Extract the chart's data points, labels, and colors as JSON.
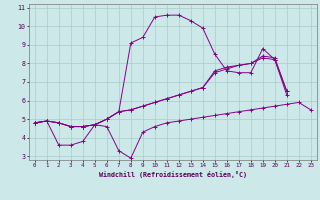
{
  "xlabel": "Windchill (Refroidissement éolien,°C)",
  "bg_color": "#cce8e8",
  "grid_color": "#aacccc",
  "line_color": "#880088",
  "xlim": [
    -0.5,
    23.5
  ],
  "ylim": [
    2.8,
    11.2
  ],
  "xticks": [
    0,
    1,
    2,
    3,
    4,
    5,
    6,
    7,
    8,
    9,
    10,
    11,
    12,
    13,
    14,
    15,
    16,
    17,
    18,
    19,
    20,
    21,
    22,
    23
  ],
  "yticks": [
    3,
    4,
    5,
    6,
    7,
    8,
    9,
    10,
    11
  ],
  "series1_x": [
    0,
    1,
    2,
    3,
    4,
    5,
    6,
    7,
    8,
    9,
    10,
    11,
    12,
    13,
    14,
    15,
    16,
    17,
    18,
    19,
    20,
    21,
    22,
    23
  ],
  "series1_y": [
    4.8,
    4.9,
    3.6,
    3.6,
    3.8,
    4.7,
    4.6,
    3.3,
    2.9,
    4.3,
    4.6,
    4.8,
    4.9,
    5.0,
    5.1,
    5.2,
    5.3,
    5.4,
    5.5,
    5.6,
    5.7,
    5.8,
    5.9,
    5.5
  ],
  "series2_x": [
    0,
    1,
    2,
    3,
    4,
    5,
    6,
    7,
    8,
    9,
    10,
    11,
    12,
    13,
    14,
    15,
    16,
    17,
    18,
    19,
    20,
    21
  ],
  "series2_y": [
    4.8,
    4.9,
    4.8,
    4.6,
    4.6,
    4.7,
    5.0,
    5.4,
    9.1,
    9.4,
    10.5,
    10.6,
    10.6,
    10.3,
    9.9,
    8.5,
    7.6,
    7.5,
    7.5,
    8.8,
    8.2,
    6.5
  ],
  "series3_x": [
    0,
    1,
    2,
    3,
    4,
    5,
    6,
    7,
    8,
    9,
    10,
    11,
    12,
    13,
    14,
    15,
    16,
    17,
    18,
    19,
    20,
    21
  ],
  "series3_y": [
    4.8,
    4.9,
    4.8,
    4.6,
    4.6,
    4.7,
    5.0,
    5.4,
    5.5,
    5.7,
    5.9,
    6.1,
    6.3,
    6.5,
    6.7,
    7.6,
    7.8,
    7.9,
    8.0,
    8.4,
    8.3,
    6.5
  ],
  "series4_x": [
    0,
    1,
    2,
    3,
    4,
    5,
    6,
    7,
    8,
    9,
    10,
    11,
    12,
    13,
    14,
    15,
    16,
    17,
    18,
    19,
    20,
    21
  ],
  "series4_y": [
    4.8,
    4.9,
    4.8,
    4.6,
    4.6,
    4.7,
    5.0,
    5.4,
    5.5,
    5.7,
    5.9,
    6.1,
    6.3,
    6.5,
    6.7,
    7.5,
    7.7,
    7.9,
    8.0,
    8.3,
    8.2,
    6.3
  ]
}
